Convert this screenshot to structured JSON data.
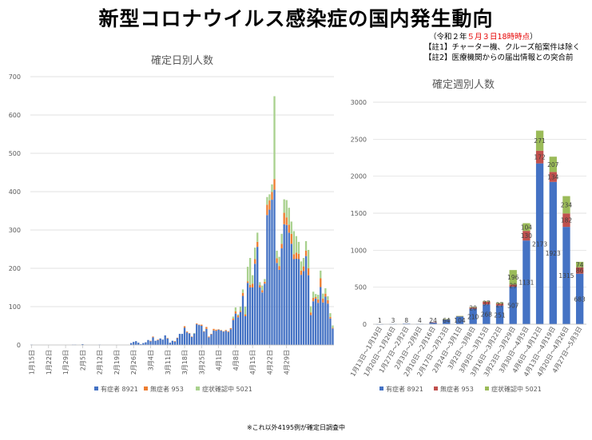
{
  "header": {
    "title": "新型コロナウイルス感染症の国内発生動向",
    "date_pre": "（令和２年",
    "date_red": "５月３日18時時点",
    "date_post": "）",
    "note1": "【註1】チャーター機、クルーズ船案件は除く",
    "note2": "【註2】医療機関からの届出情報との突合前"
  },
  "footnote": "※これ以外4195例が確定日調査中",
  "colors": {
    "symptomatic": "#4472c4",
    "asymptomatic": "#ed7d31",
    "pending": "#a9d18e",
    "weekly_symptomatic": "#4472c4",
    "weekly_asymptomatic": "#c0504d",
    "weekly_pending": "#9bbb59"
  },
  "chart_data": [
    {
      "type": "bar",
      "stacked": true,
      "title": "確定日別人数",
      "ylim": [
        0,
        700
      ],
      "yticks": [
        "0",
        "100",
        "200",
        "300",
        "400",
        "500",
        "600",
        "700"
      ],
      "start_date": "1月15日",
      "x_tick_labels": [
        "1月15日",
        "1月22日",
        "1月29日",
        "2月5日",
        "2月12日",
        "2月19日",
        "2月26日",
        "3月4日",
        "3月11日",
        "3月18日",
        "3月25日",
        "4月1日",
        "4月8日",
        "4月15日",
        "4月22日",
        "4月29日"
      ],
      "legend": [
        "有症者 8921",
        "無症者 953",
        "症状確認中 5021"
      ],
      "series": [
        {
          "name": "有症者",
          "values": [
            1,
            0,
            0,
            0,
            0,
            0,
            0,
            0,
            0,
            0,
            0,
            0,
            0,
            0,
            0,
            0,
            0,
            1,
            1,
            0,
            0,
            2,
            0,
            0,
            0,
            0,
            0,
            0,
            1,
            0,
            0,
            0,
            0,
            0,
            0,
            0,
            0,
            0,
            0,
            0,
            0,
            5,
            8,
            10,
            6,
            2,
            5,
            7,
            13,
            10,
            20,
            11,
            13,
            17,
            14,
            25,
            17,
            6,
            11,
            9,
            18,
            29,
            29,
            45,
            33,
            30,
            21,
            30,
            54,
            52,
            50,
            35,
            42,
            20,
            28,
            38,
            37,
            40,
            38,
            35,
            37,
            34,
            41,
            65,
            82,
            72,
            86,
            128,
            75,
            162,
            150,
            150,
            212,
            256,
            150,
            137,
            160,
            339,
            353,
            379,
            405,
            214,
            196,
            252,
            315,
            313,
            293,
            264,
            224,
            225,
            224,
            183,
            193,
            232,
            182,
            78,
            114,
            121,
            110,
            151,
            111,
            126,
            108,
            69,
            43
          ]
        },
        {
          "name": "無症者",
          "values": [
            0,
            0,
            0,
            0,
            0,
            0,
            0,
            0,
            0,
            0,
            0,
            0,
            0,
            0,
            0,
            0,
            0,
            0,
            0,
            0,
            0,
            0,
            0,
            0,
            0,
            0,
            0,
            0,
            0,
            0,
            0,
            0,
            0,
            0,
            0,
            0,
            0,
            0,
            0,
            0,
            0,
            0,
            0,
            0,
            0,
            0,
            0,
            0,
            0,
            1,
            2,
            0,
            1,
            0,
            0,
            0,
            1,
            0,
            0,
            1,
            1,
            0,
            0,
            4,
            2,
            1,
            1,
            0,
            2,
            1,
            3,
            1,
            5,
            2,
            1,
            4,
            3,
            1,
            1,
            1,
            2,
            2,
            3,
            4,
            6,
            5,
            3,
            8,
            5,
            4,
            7,
            10,
            12,
            13,
            6,
            6,
            5,
            27,
            24,
            20,
            28,
            12,
            10,
            12,
            30,
            20,
            21,
            26,
            13,
            16,
            14,
            11,
            12,
            14,
            18,
            7,
            9,
            4,
            9,
            23,
            10,
            8,
            9,
            4,
            2
          ]
        },
        {
          "name": "症状確認中",
          "values": [
            0,
            0,
            0,
            0,
            0,
            0,
            0,
            0,
            0,
            0,
            0,
            0,
            0,
            0,
            0,
            0,
            0,
            0,
            0,
            0,
            0,
            0,
            0,
            0,
            0,
            0,
            0,
            0,
            0,
            0,
            0,
            0,
            0,
            0,
            0,
            0,
            0,
            0,
            0,
            0,
            0,
            0,
            0,
            0,
            0,
            0,
            0,
            0,
            0,
            0,
            0,
            0,
            0,
            0,
            0,
            0,
            0,
            0,
            0,
            0,
            0,
            0,
            0,
            0,
            0,
            0,
            0,
            1,
            0,
            0,
            0,
            0,
            0,
            0,
            0,
            0,
            0,
            0,
            0,
            0,
            0,
            0,
            0,
            5,
            10,
            3,
            11,
            9,
            20,
            38,
            70,
            22,
            30,
            24,
            8,
            12,
            7,
            20,
            16,
            20,
            216,
            20,
            24,
            26,
            35,
            45,
            44,
            32,
            60,
            43,
            31,
            24,
            22,
            25,
            48,
            16,
            16,
            8,
            12,
            20,
            13,
            14,
            10,
            10,
            6
          ]
        }
      ]
    },
    {
      "type": "bar",
      "stacked": true,
      "title": "確定週別人数",
      "ylim": [
        0,
        3000
      ],
      "yticks": [
        "0",
        "500",
        "1000",
        "1500",
        "2000",
        "2500",
        "3000"
      ],
      "categories": [
        "1月13日～1月19日",
        "1月20日～1月26日",
        "1月27日～2月2日",
        "2月3日～2月9日",
        "2月10日～2月16日",
        "2月17日～2月23日",
        "2月24日～3月1日",
        "3月2日～3月8日",
        "3月9日～3月15日",
        "3月16日～3月22日",
        "3月23日～3月29日",
        "3月30日～4月5日",
        "4月6日～4月12日",
        "4月13日～4月19日",
        "4月20日～4月26日",
        "4月27日～5月3日"
      ],
      "legend": [
        "有症者 8921",
        "無症者 953",
        "症状確認中 5021"
      ],
      "series": [
        {
          "name": "有症者",
          "values": [
            1,
            3,
            8,
            4,
            24,
            64,
            104,
            210,
            268,
            251,
            507,
            1131,
            2173,
            1923,
            1315,
            683
          ]
        },
        {
          "name": "無症者",
          "values": [
            0,
            0,
            0,
            0,
            2,
            5,
            6,
            20,
            37,
            27,
            29,
            130,
            172,
            134,
            182,
            86
          ]
        },
        {
          "name": "症状確認中",
          "values": [
            0,
            0,
            0,
            0,
            0,
            1,
            1,
            1,
            7,
            12,
            196,
            104,
            271,
            207,
            234,
            74
          ]
        }
      ],
      "labels_symptomatic": [
        "1",
        "3",
        "8",
        "4",
        "24",
        "64",
        "104",
        "210",
        "268",
        "251",
        "507",
        "1131",
        "2173",
        "1923",
        "1315",
        "683"
      ],
      "labels_asymptomatic": [
        "",
        "",
        "",
        "",
        "",
        "",
        "",
        "20",
        "37",
        "27",
        "29",
        "130",
        "172",
        "134",
        "182",
        "86"
      ],
      "labels_pending": [
        "",
        "",
        "",
        "",
        "",
        "",
        "",
        "",
        "",
        "",
        "196",
        "104",
        "271",
        "207",
        "234",
        "74"
      ]
    }
  ]
}
